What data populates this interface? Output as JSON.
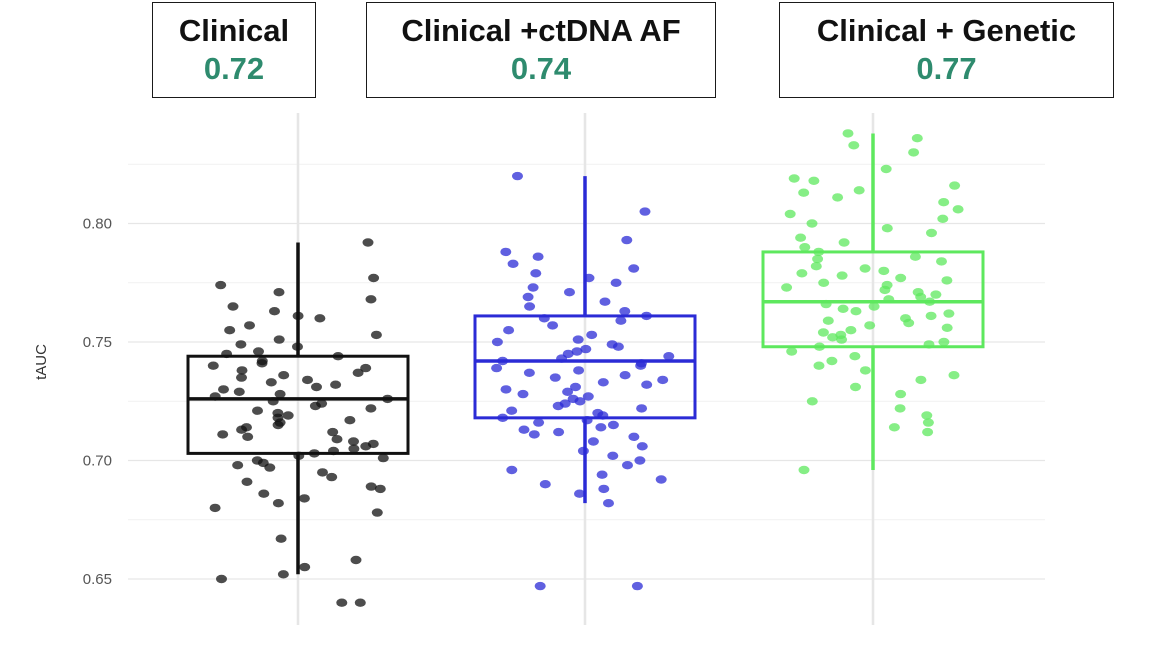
{
  "colors": {
    "auc": "#2e8b6e"
  },
  "boxes": [
    {
      "title": "Clinical",
      "value": "0.72"
    },
    {
      "title": "Clinical +ctDNA AF",
      "value": "0.74"
    },
    {
      "title": "Clinical + Genetic",
      "value": "0.77"
    }
  ],
  "chart_data": {
    "type": "box",
    "ylabel": "tAUC",
    "xlabel": "",
    "ylim": [
      0.64,
      0.84
    ],
    "yticks": [
      "0.65",
      "0.70",
      "0.75",
      "0.80"
    ],
    "grid": true,
    "series": [
      {
        "color": "#111111",
        "q1": 0.703,
        "median": 0.726,
        "q3": 0.744,
        "whisker_low": 0.652,
        "whisker_high": 0.792,
        "points": [
          0.792,
          0.777,
          0.774,
          0.771,
          0.768,
          0.765,
          0.763,
          0.761,
          0.76,
          0.757,
          0.755,
          0.753,
          0.751,
          0.749,
          0.748,
          0.746,
          0.745,
          0.744,
          0.742,
          0.741,
          0.74,
          0.739,
          0.738,
          0.737,
          0.736,
          0.735,
          0.734,
          0.733,
          0.732,
          0.731,
          0.73,
          0.729,
          0.728,
          0.727,
          0.726,
          0.725,
          0.724,
          0.723,
          0.722,
          0.721,
          0.72,
          0.719,
          0.718,
          0.717,
          0.716,
          0.715,
          0.714,
          0.713,
          0.712,
          0.711,
          0.71,
          0.709,
          0.708,
          0.707,
          0.706,
          0.705,
          0.704,
          0.703,
          0.702,
          0.701,
          0.7,
          0.699,
          0.698,
          0.697,
          0.695,
          0.693,
          0.691,
          0.689,
          0.688,
          0.686,
          0.684,
          0.682,
          0.68,
          0.678,
          0.667,
          0.658,
          0.655,
          0.652,
          0.65,
          0.64,
          0.64
        ]
      },
      {
        "color": "#2b2bd6",
        "q1": 0.718,
        "median": 0.742,
        "q3": 0.761,
        "whisker_low": 0.682,
        "whisker_high": 0.82,
        "points": [
          0.82,
          0.805,
          0.793,
          0.788,
          0.786,
          0.783,
          0.781,
          0.779,
          0.777,
          0.775,
          0.773,
          0.771,
          0.769,
          0.767,
          0.765,
          0.763,
          0.761,
          0.76,
          0.759,
          0.757,
          0.755,
          0.753,
          0.751,
          0.75,
          0.749,
          0.748,
          0.747,
          0.746,
          0.745,
          0.744,
          0.743,
          0.742,
          0.741,
          0.74,
          0.739,
          0.738,
          0.737,
          0.736,
          0.735,
          0.734,
          0.733,
          0.732,
          0.731,
          0.73,
          0.729,
          0.728,
          0.727,
          0.726,
          0.725,
          0.724,
          0.723,
          0.722,
          0.721,
          0.72,
          0.719,
          0.718,
          0.717,
          0.716,
          0.715,
          0.714,
          0.713,
          0.712,
          0.711,
          0.71,
          0.708,
          0.706,
          0.704,
          0.702,
          0.7,
          0.698,
          0.696,
          0.694,
          0.692,
          0.69,
          0.688,
          0.686,
          0.682,
          0.647,
          0.647
        ]
      },
      {
        "color": "#5ee85e",
        "q1": 0.748,
        "median": 0.767,
        "q3": 0.788,
        "whisker_low": 0.696,
        "whisker_high": 0.838,
        "points": [
          0.838,
          0.836,
          0.833,
          0.83,
          0.823,
          0.819,
          0.818,
          0.816,
          0.814,
          0.813,
          0.811,
          0.809,
          0.806,
          0.804,
          0.802,
          0.8,
          0.798,
          0.796,
          0.794,
          0.792,
          0.79,
          0.788,
          0.786,
          0.785,
          0.784,
          0.782,
          0.781,
          0.78,
          0.779,
          0.778,
          0.777,
          0.776,
          0.775,
          0.774,
          0.773,
          0.772,
          0.771,
          0.77,
          0.769,
          0.768,
          0.767,
          0.766,
          0.765,
          0.764,
          0.763,
          0.762,
          0.761,
          0.76,
          0.759,
          0.758,
          0.757,
          0.756,
          0.755,
          0.754,
          0.753,
          0.752,
          0.751,
          0.75,
          0.749,
          0.748,
          0.746,
          0.744,
          0.742,
          0.74,
          0.738,
          0.736,
          0.734,
          0.731,
          0.728,
          0.725,
          0.722,
          0.719,
          0.716,
          0.714,
          0.712,
          0.696
        ]
      }
    ]
  }
}
